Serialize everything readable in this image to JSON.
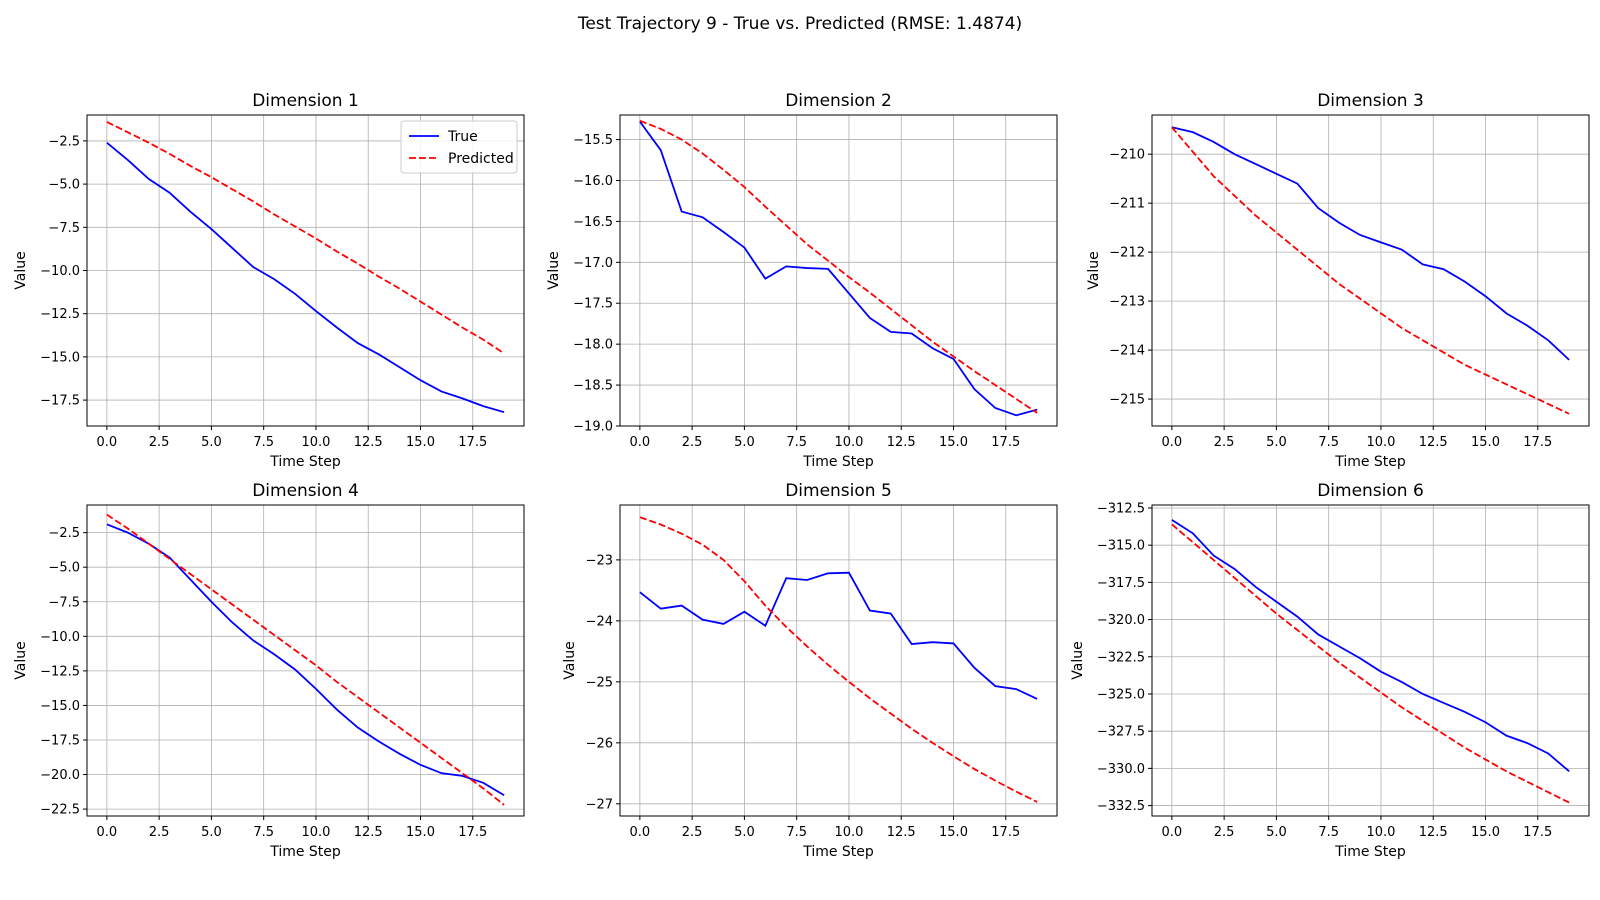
{
  "figure_title": "Test Trajectory 9 - True vs. Predicted (RMSE: 1.4874)",
  "colors": {
    "true": "#0000ff",
    "predicted": "#ff0000",
    "grid": "#b0b0b0"
  },
  "chart_data": [
    {
      "type": "line",
      "title": "Dimension 1",
      "xlabel": "Time Step",
      "ylabel": "Value",
      "xlim": [
        -0.95,
        19.95
      ],
      "ylim": [
        -19.0,
        -1.0
      ],
      "xticks": [
        0,
        2.5,
        5,
        7.5,
        10,
        12.5,
        15,
        17.5
      ],
      "xtick_labels": [
        "0.0",
        "2.5",
        "5.0",
        "7.5",
        "10.0",
        "12.5",
        "15.0",
        "17.5"
      ],
      "yticks": [
        -2.5,
        -5,
        -7.5,
        -10,
        -12.5,
        -15,
        -17.5
      ],
      "ytick_labels": [
        "−2.5",
        "−5.0",
        "−7.5",
        "−10.0",
        "−12.5",
        "−15.0",
        "−17.5"
      ],
      "legend": {
        "position": "top-right",
        "entries": [
          "True",
          "Predicted"
        ]
      },
      "x": [
        0,
        1,
        2,
        3,
        4,
        5,
        6,
        7,
        8,
        9,
        10,
        11,
        12,
        13,
        14,
        15,
        16,
        17,
        18,
        19
      ],
      "series": [
        {
          "name": "True",
          "style": "solid",
          "values": [
            -2.6,
            -3.6,
            -4.7,
            -5.5,
            -6.6,
            -7.6,
            -8.7,
            -9.8,
            -10.5,
            -11.35,
            -12.35,
            -13.3,
            -14.2,
            -14.85,
            -15.6,
            -16.35,
            -17.0,
            -17.4,
            -17.85,
            -18.2
          ]
        },
        {
          "name": "Predicted",
          "style": "dashed",
          "values": [
            -1.4,
            -2.0,
            -2.6,
            -3.25,
            -3.95,
            -4.6,
            -5.3,
            -6.0,
            -6.75,
            -7.45,
            -8.15,
            -8.9,
            -9.6,
            -10.35,
            -11.05,
            -11.8,
            -12.55,
            -13.3,
            -14.0,
            -14.8
          ]
        }
      ]
    },
    {
      "type": "line",
      "title": "Dimension 2",
      "xlabel": "Time Step",
      "ylabel": "Value",
      "xlim": [
        -0.95,
        19.95
      ],
      "ylim": [
        -19.0,
        -15.2
      ],
      "xticks": [
        0,
        2.5,
        5,
        7.5,
        10,
        12.5,
        15,
        17.5
      ],
      "xtick_labels": [
        "0.0",
        "2.5",
        "5.0",
        "7.5",
        "10.0",
        "12.5",
        "15.0",
        "17.5"
      ],
      "yticks": [
        -15.5,
        -16,
        -16.5,
        -17,
        -17.5,
        -18,
        -18.5,
        -19
      ],
      "ytick_labels": [
        "−15.5",
        "−16.0",
        "−16.5",
        "−17.0",
        "−17.5",
        "−18.0",
        "−18.5",
        "−19.0"
      ],
      "x": [
        0,
        1,
        2,
        3,
        4,
        5,
        6,
        7,
        8,
        9,
        10,
        11,
        12,
        13,
        14,
        15,
        16,
        17,
        18,
        19
      ],
      "series": [
        {
          "name": "True",
          "style": "solid",
          "values": [
            -15.28,
            -15.63,
            -16.38,
            -16.45,
            -16.63,
            -16.82,
            -17.2,
            -17.05,
            -17.07,
            -17.08,
            -17.38,
            -17.68,
            -17.85,
            -17.87,
            -18.05,
            -18.18,
            -18.55,
            -18.78,
            -18.87,
            -18.8
          ]
        },
        {
          "name": "Predicted",
          "style": "dashed",
          "values": [
            -15.27,
            -15.37,
            -15.5,
            -15.67,
            -15.87,
            -16.08,
            -16.32,
            -16.55,
            -16.78,
            -16.98,
            -17.18,
            -17.37,
            -17.57,
            -17.77,
            -17.97,
            -18.15,
            -18.33,
            -18.5,
            -18.67,
            -18.84
          ]
        }
      ]
    },
    {
      "type": "line",
      "title": "Dimension 3",
      "xlabel": "Time Step",
      "ylabel": "Value",
      "xlim": [
        -0.95,
        19.95
      ],
      "ylim": [
        -215.55,
        -209.2
      ],
      "xticks": [
        0,
        2.5,
        5,
        7.5,
        10,
        12.5,
        15,
        17.5
      ],
      "xtick_labels": [
        "0.0",
        "2.5",
        "5.0",
        "7.5",
        "10.0",
        "12.5",
        "15.0",
        "17.5"
      ],
      "yticks": [
        -210,
        -211,
        -212,
        -213,
        -214,
        -215
      ],
      "ytick_labels": [
        "−210",
        "−211",
        "−212",
        "−213",
        "−214",
        "−215"
      ],
      "x": [
        0,
        1,
        2,
        3,
        4,
        5,
        6,
        7,
        8,
        9,
        10,
        11,
        12,
        13,
        14,
        15,
        16,
        17,
        18,
        19
      ],
      "series": [
        {
          "name": "True",
          "style": "solid",
          "values": [
            -209.45,
            -209.55,
            -209.75,
            -210.0,
            -210.2,
            -210.4,
            -210.6,
            -211.1,
            -211.4,
            -211.65,
            -211.8,
            -211.95,
            -212.25,
            -212.35,
            -212.6,
            -212.9,
            -213.25,
            -213.5,
            -213.8,
            -214.2
          ]
        },
        {
          "name": "Predicted",
          "style": "dashed",
          "values": [
            -209.45,
            -209.95,
            -210.45,
            -210.85,
            -211.25,
            -211.6,
            -211.95,
            -212.3,
            -212.65,
            -212.95,
            -213.25,
            -213.55,
            -213.8,
            -214.05,
            -214.3,
            -214.5,
            -214.7,
            -214.9,
            -215.1,
            -215.3
          ]
        }
      ]
    },
    {
      "type": "line",
      "title": "Dimension 4",
      "xlabel": "Time Step",
      "ylabel": "Value",
      "xlim": [
        -0.95,
        19.95
      ],
      "ylim": [
        -23.0,
        -0.5
      ],
      "xticks": [
        0,
        2.5,
        5,
        7.5,
        10,
        12.5,
        15,
        17.5
      ],
      "xtick_labels": [
        "0.0",
        "2.5",
        "5.0",
        "7.5",
        "10.0",
        "12.5",
        "15.0",
        "17.5"
      ],
      "yticks": [
        -2.5,
        -5,
        -7.5,
        -10,
        -12.5,
        -15,
        -17.5,
        -20,
        -22.5
      ],
      "ytick_labels": [
        "−2.5",
        "−5.0",
        "−7.5",
        "−10.0",
        "−12.5",
        "−15.0",
        "−17.5",
        "−20.0",
        "−22.5"
      ],
      "x": [
        0,
        1,
        2,
        3,
        4,
        5,
        6,
        7,
        8,
        9,
        10,
        11,
        12,
        13,
        14,
        15,
        16,
        17,
        18,
        19
      ],
      "series": [
        {
          "name": "True",
          "style": "solid",
          "values": [
            -1.9,
            -2.5,
            -3.3,
            -4.3,
            -5.9,
            -7.5,
            -9.0,
            -10.3,
            -11.3,
            -12.4,
            -13.8,
            -15.3,
            -16.6,
            -17.6,
            -18.5,
            -19.3,
            -19.9,
            -20.1,
            -20.6,
            -21.5
          ]
        },
        {
          "name": "Predicted",
          "style": "dashed",
          "values": [
            -1.2,
            -2.2,
            -3.3,
            -4.4,
            -5.5,
            -6.6,
            -7.7,
            -8.8,
            -9.9,
            -11.0,
            -12.1,
            -13.3,
            -14.4,
            -15.5,
            -16.6,
            -17.7,
            -18.8,
            -19.9,
            -21.0,
            -22.2
          ]
        }
      ]
    },
    {
      "type": "line",
      "title": "Dimension 5",
      "xlabel": "Time Step",
      "ylabel": "Value",
      "xlim": [
        -0.95,
        19.95
      ],
      "ylim": [
        -27.2,
        -22.1
      ],
      "xticks": [
        0,
        2.5,
        5,
        7.5,
        10,
        12.5,
        15,
        17.5
      ],
      "xtick_labels": [
        "0.0",
        "2.5",
        "5.0",
        "7.5",
        "10.0",
        "12.5",
        "15.0",
        "17.5"
      ],
      "yticks": [
        -23,
        -24,
        -25,
        -26,
        -27
      ],
      "ytick_labels": [
        "−23",
        "−24",
        "−25",
        "−26",
        "−27"
      ],
      "x": [
        0,
        1,
        2,
        3,
        4,
        5,
        6,
        7,
        8,
        9,
        10,
        11,
        12,
        13,
        14,
        15,
        16,
        17,
        18,
        19
      ],
      "series": [
        {
          "name": "True",
          "style": "solid",
          "values": [
            -23.53,
            -23.8,
            -23.75,
            -23.98,
            -24.05,
            -23.85,
            -24.08,
            -23.3,
            -23.33,
            -23.22,
            -23.21,
            -23.83,
            -23.88,
            -24.38,
            -24.35,
            -24.37,
            -24.77,
            -25.07,
            -25.12,
            -25.28
          ]
        },
        {
          "name": "Predicted",
          "style": "dashed",
          "values": [
            -22.3,
            -22.42,
            -22.57,
            -22.75,
            -23.0,
            -23.35,
            -23.75,
            -24.1,
            -24.42,
            -24.72,
            -25.0,
            -25.27,
            -25.52,
            -25.77,
            -26.0,
            -26.22,
            -26.43,
            -26.62,
            -26.8,
            -26.97
          ]
        }
      ]
    },
    {
      "type": "line",
      "title": "Dimension 6",
      "xlabel": "Time Step",
      "ylabel": "Value",
      "xlim": [
        -0.95,
        19.95
      ],
      "ylim": [
        -333.2,
        -312.3
      ],
      "xticks": [
        0,
        2.5,
        5,
        7.5,
        10,
        12.5,
        15,
        17.5
      ],
      "xtick_labels": [
        "0.0",
        "2.5",
        "5.0",
        "7.5",
        "10.0",
        "12.5",
        "15.0",
        "17.5"
      ],
      "yticks": [
        -312.5,
        -315,
        -317.5,
        -320,
        -322.5,
        -325,
        -327.5,
        -330,
        -332.5
      ],
      "ytick_labels": [
        "−312.5",
        "−315.0",
        "−317.5",
        "−320.0",
        "−322.5",
        "−325.0",
        "−327.5",
        "−330.0",
        "−332.5"
      ],
      "x": [
        0,
        1,
        2,
        3,
        4,
        5,
        6,
        7,
        8,
        9,
        10,
        11,
        12,
        13,
        14,
        15,
        16,
        17,
        18,
        19
      ],
      "series": [
        {
          "name": "True",
          "style": "solid",
          "values": [
            -313.3,
            -314.2,
            -315.7,
            -316.6,
            -317.8,
            -318.8,
            -319.8,
            -321.0,
            -321.8,
            -322.6,
            -323.5,
            -324.2,
            -325.0,
            -325.6,
            -326.2,
            -326.9,
            -327.8,
            -328.3,
            -329.0,
            -330.2
          ]
        },
        {
          "name": "Predicted",
          "style": "dashed",
          "values": [
            -313.6,
            -314.8,
            -316.0,
            -317.2,
            -318.4,
            -319.6,
            -320.7,
            -321.8,
            -322.9,
            -323.9,
            -324.9,
            -325.9,
            -326.8,
            -327.7,
            -328.6,
            -329.4,
            -330.2,
            -330.9,
            -331.6,
            -332.3
          ]
        }
      ]
    }
  ]
}
